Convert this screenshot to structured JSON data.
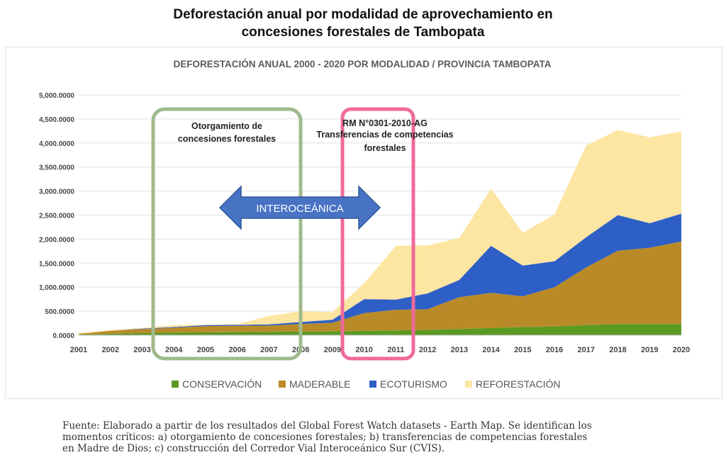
{
  "page_title_line1": "Deforestación anual por modalidad de aprovechamiento en",
  "page_title_line2": "concesiones forestales de Tambopata",
  "source_lines": [
    "Fuente: Elaborado a partir de los resultados del Global Forest Watch datasets - Earth Map. Se identifican los",
    "momentos críticos: a) otorgamiento de concesiones forestales; b) transferencias de competencias forestales",
    "en Madre de Dios; c) construcción del Corredor Vial Interoceánico Sur (CVIS)."
  ],
  "annotations": {
    "box1_line1": "Otorgamiento de",
    "box1_line2": "concesiones forestales",
    "box2_line1": "RM N°0301-2010-AG",
    "box2_line2": "Transferencias de competencias",
    "box2_line3": "forestales",
    "arrow_label": "INTEROCEÁNICA"
  },
  "colors": {
    "conservacion": "#5a9a22",
    "maderable": "#b98b28",
    "ecoturismo": "#2e5fc7",
    "reforestacion": "#fde5a2",
    "box1": "#9fba8c",
    "box2": "#ee6a9c",
    "arrow": "#4873c4"
  },
  "chart_data": {
    "type": "area",
    "stacked": true,
    "title": "DEFORESTACIÓN ANUAL 2000 - 2020 POR MODALIDAD / PROVINCIA TAMBOPATA",
    "xlabel": "",
    "ylabel": "",
    "ylim": [
      0,
      5000
    ],
    "y_ticks": [
      "0.0000",
      "500.0000",
      "1,000.0000",
      "1,500.0000",
      "2,000.0000",
      "2,500.0000",
      "3,000.0000",
      "3,500.0000",
      "4,000.0000",
      "4,500.0000",
      "5,000.0000"
    ],
    "x": [
      "2001",
      "2002",
      "2003",
      "2004",
      "2005",
      "2006",
      "2007",
      "2008",
      "2009",
      "2010",
      "2011",
      "2012",
      "2013",
      "2014",
      "2015",
      "2016",
      "2017",
      "2018",
      "2019",
      "2020"
    ],
    "series": [
      {
        "name": "CONSERVACIÓN",
        "color": "#5a9a22",
        "values": [
          10,
          30,
          45,
          55,
          60,
          65,
          70,
          75,
          80,
          90,
          100,
          110,
          130,
          150,
          170,
          180,
          210,
          230,
          230,
          230
        ]
      },
      {
        "name": "MADERABLE",
        "color": "#b98b28",
        "values": [
          20,
          60,
          80,
          100,
          130,
          130,
          130,
          160,
          180,
          370,
          430,
          430,
          660,
          730,
          640,
          820,
          1200,
          1530,
          1590,
          1720
        ]
      },
      {
        "name": "ECOTURISMO",
        "color": "#2e5fc7",
        "values": [
          0,
          0,
          10,
          15,
          20,
          20,
          25,
          40,
          60,
          290,
          210,
          330,
          360,
          980,
          640,
          540,
          630,
          740,
          510,
          580
        ]
      },
      {
        "name": "REFORESTACIÓN",
        "color": "#fde5a2",
        "values": [
          10,
          20,
          20,
          40,
          10,
          15,
          175,
          225,
          160,
          330,
          1120,
          1000,
          870,
          1190,
          680,
          970,
          1910,
          1770,
          1790,
          1710
        ]
      }
    ],
    "grid": true,
    "legend_position": "bottom"
  }
}
